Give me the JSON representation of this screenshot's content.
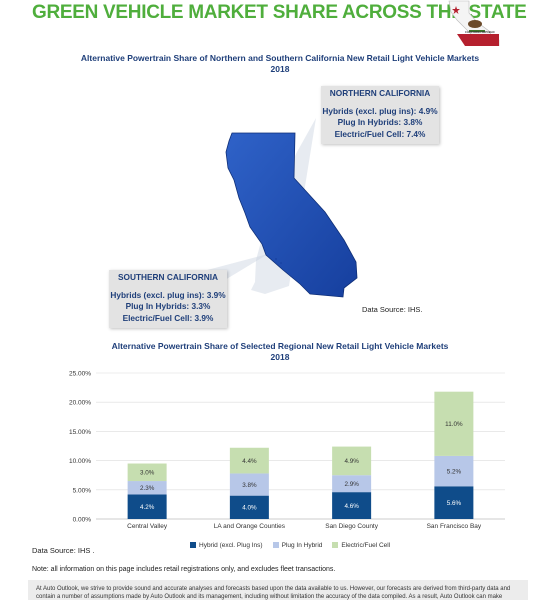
{
  "header": {
    "title": "GREEN VEHICLE MARKET SHARE ACROSS THE STATE",
    "flag_caption": "CALIFORNIA REPUBLIC"
  },
  "map_section": {
    "title_line1": "Alternative Powertrain Share of Northern and Southern California New Retail Light Vehicle Markets",
    "title_line2": "2018",
    "north": {
      "title": "NORTHERN CALIFORNIA",
      "lines": [
        "Hybrids (excl. plug ins): 4.9%",
        "Plug In Hybrids: 3.8%",
        "Electric/Fuel Cell: 7.4%"
      ]
    },
    "south": {
      "title": "SOUTHERN CALIFORNIA",
      "lines": [
        "Hybrids (excl. plug ins): 3.9%",
        "Plug In Hybrids: 3.3%",
        "Electric/Fuel Cell: 3.9%"
      ]
    },
    "source": "Data Source: IHS."
  },
  "chart_section": {
    "title_line1": "Alternative Powertrain Share of Selected Regional New Retail Light Vehicle Markets",
    "title_line2": "2018",
    "source": "Data Source: IHS ."
  },
  "chart_data": {
    "type": "bar",
    "stacked": true,
    "categories": [
      "Central Valley",
      "LA and Orange Counties",
      "San Diego County",
      "San Francisco Bay"
    ],
    "series": [
      {
        "name": "Hybrid (excl. Plug Ins)",
        "values": [
          4.2,
          4.0,
          4.6,
          5.6
        ],
        "labels": [
          "4.2%",
          "4.0%",
          "4.6%",
          "5.6%"
        ],
        "color": "#0f4c8a"
      },
      {
        "name": "Plug In Hybrid",
        "values": [
          2.3,
          3.8,
          2.9,
          5.2
        ],
        "labels": [
          "2.3%",
          "3.8%",
          "2.9%",
          "5.2%"
        ],
        "color": "#b7c7e8"
      },
      {
        "name": "Electric/Fuel Cell",
        "values": [
          3.0,
          4.4,
          4.9,
          11.0
        ],
        "labels": [
          "3.0%",
          "4.4%",
          "4.9%",
          "11.0%"
        ],
        "color": "#c6deb0"
      }
    ],
    "yticks": [
      "0.00%",
      "5.00%",
      "10.00%",
      "15.00%",
      "20.00%",
      "25.00%"
    ],
    "ylim": [
      0,
      25
    ],
    "grid": true,
    "legend_position": "bottom"
  },
  "notes": {
    "note": "Note: all information on this page includes retail registrations only, and excludes fleet transactions.",
    "footer": "At Auto Outlook, we strive to provide sound and accurate analyses and forecasts based upon the data available to us. However, our forecasts are derived from third-party data and contain a number of assumptions made by Auto Outlook and its management, including without limitation the accuracy of the data compiled. As a result, Auto Outlook can make"
  }
}
